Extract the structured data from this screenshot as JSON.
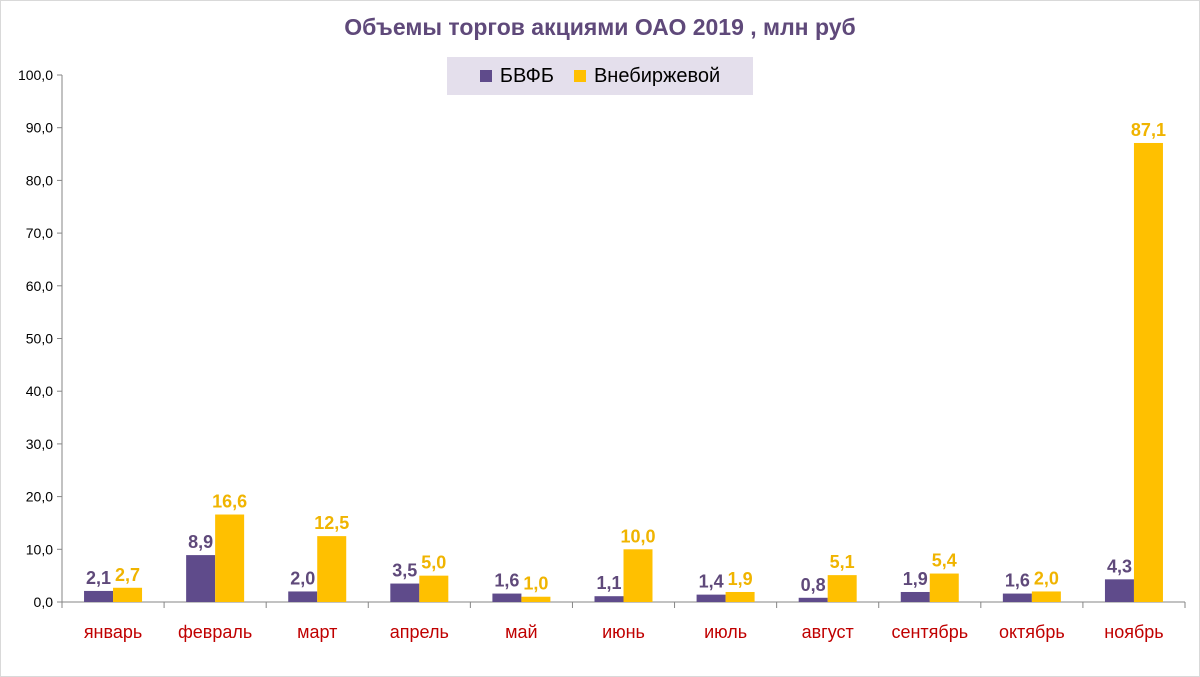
{
  "chart_data": {
    "type": "bar",
    "title": "Объемы торгов акциями ОАО 2019 , млн руб",
    "categories": [
      "январь",
      "февраль",
      "март",
      "апрель",
      "май",
      "июнь",
      "июль",
      "август",
      "сентябрь",
      "октябрь",
      "ноябрь"
    ],
    "series": [
      {
        "name": "БВФБ",
        "color": "#5f4b8b",
        "label_color": "#5f497a",
        "values": [
          2.1,
          8.9,
          2.0,
          3.5,
          1.6,
          1.1,
          1.4,
          0.8,
          1.9,
          1.6,
          4.3
        ],
        "labels": [
          "2,1",
          "8,9",
          "2,0",
          "3,5",
          "1,6",
          "1,1",
          "1,4",
          "0,8",
          "1,9",
          "1,6",
          "4,3"
        ]
      },
      {
        "name": "Внебиржевой",
        "color": "#ffc000",
        "label_color": "#f0b400",
        "values": [
          2.7,
          16.6,
          12.5,
          5.0,
          1.0,
          10.0,
          1.9,
          5.1,
          5.4,
          2.0,
          87.1
        ],
        "labels": [
          "2,7",
          "16,6",
          "12,5",
          "5,0",
          "1,0",
          "10,0",
          "1,9",
          "5,1",
          "5,4",
          "2,0",
          "87,1"
        ]
      }
    ],
    "xlabel": "",
    "ylabel": "",
    "ylim": [
      0,
      100
    ],
    "yticks": [
      "0,0",
      "10,0",
      "20,0",
      "30,0",
      "40,0",
      "50,0",
      "60,0",
      "70,0",
      "80,0",
      "90,0",
      "100,0"
    ],
    "grid": false,
    "legend_position": "top-center",
    "category_label_color": "#c00000",
    "axis_color": "#868686"
  }
}
